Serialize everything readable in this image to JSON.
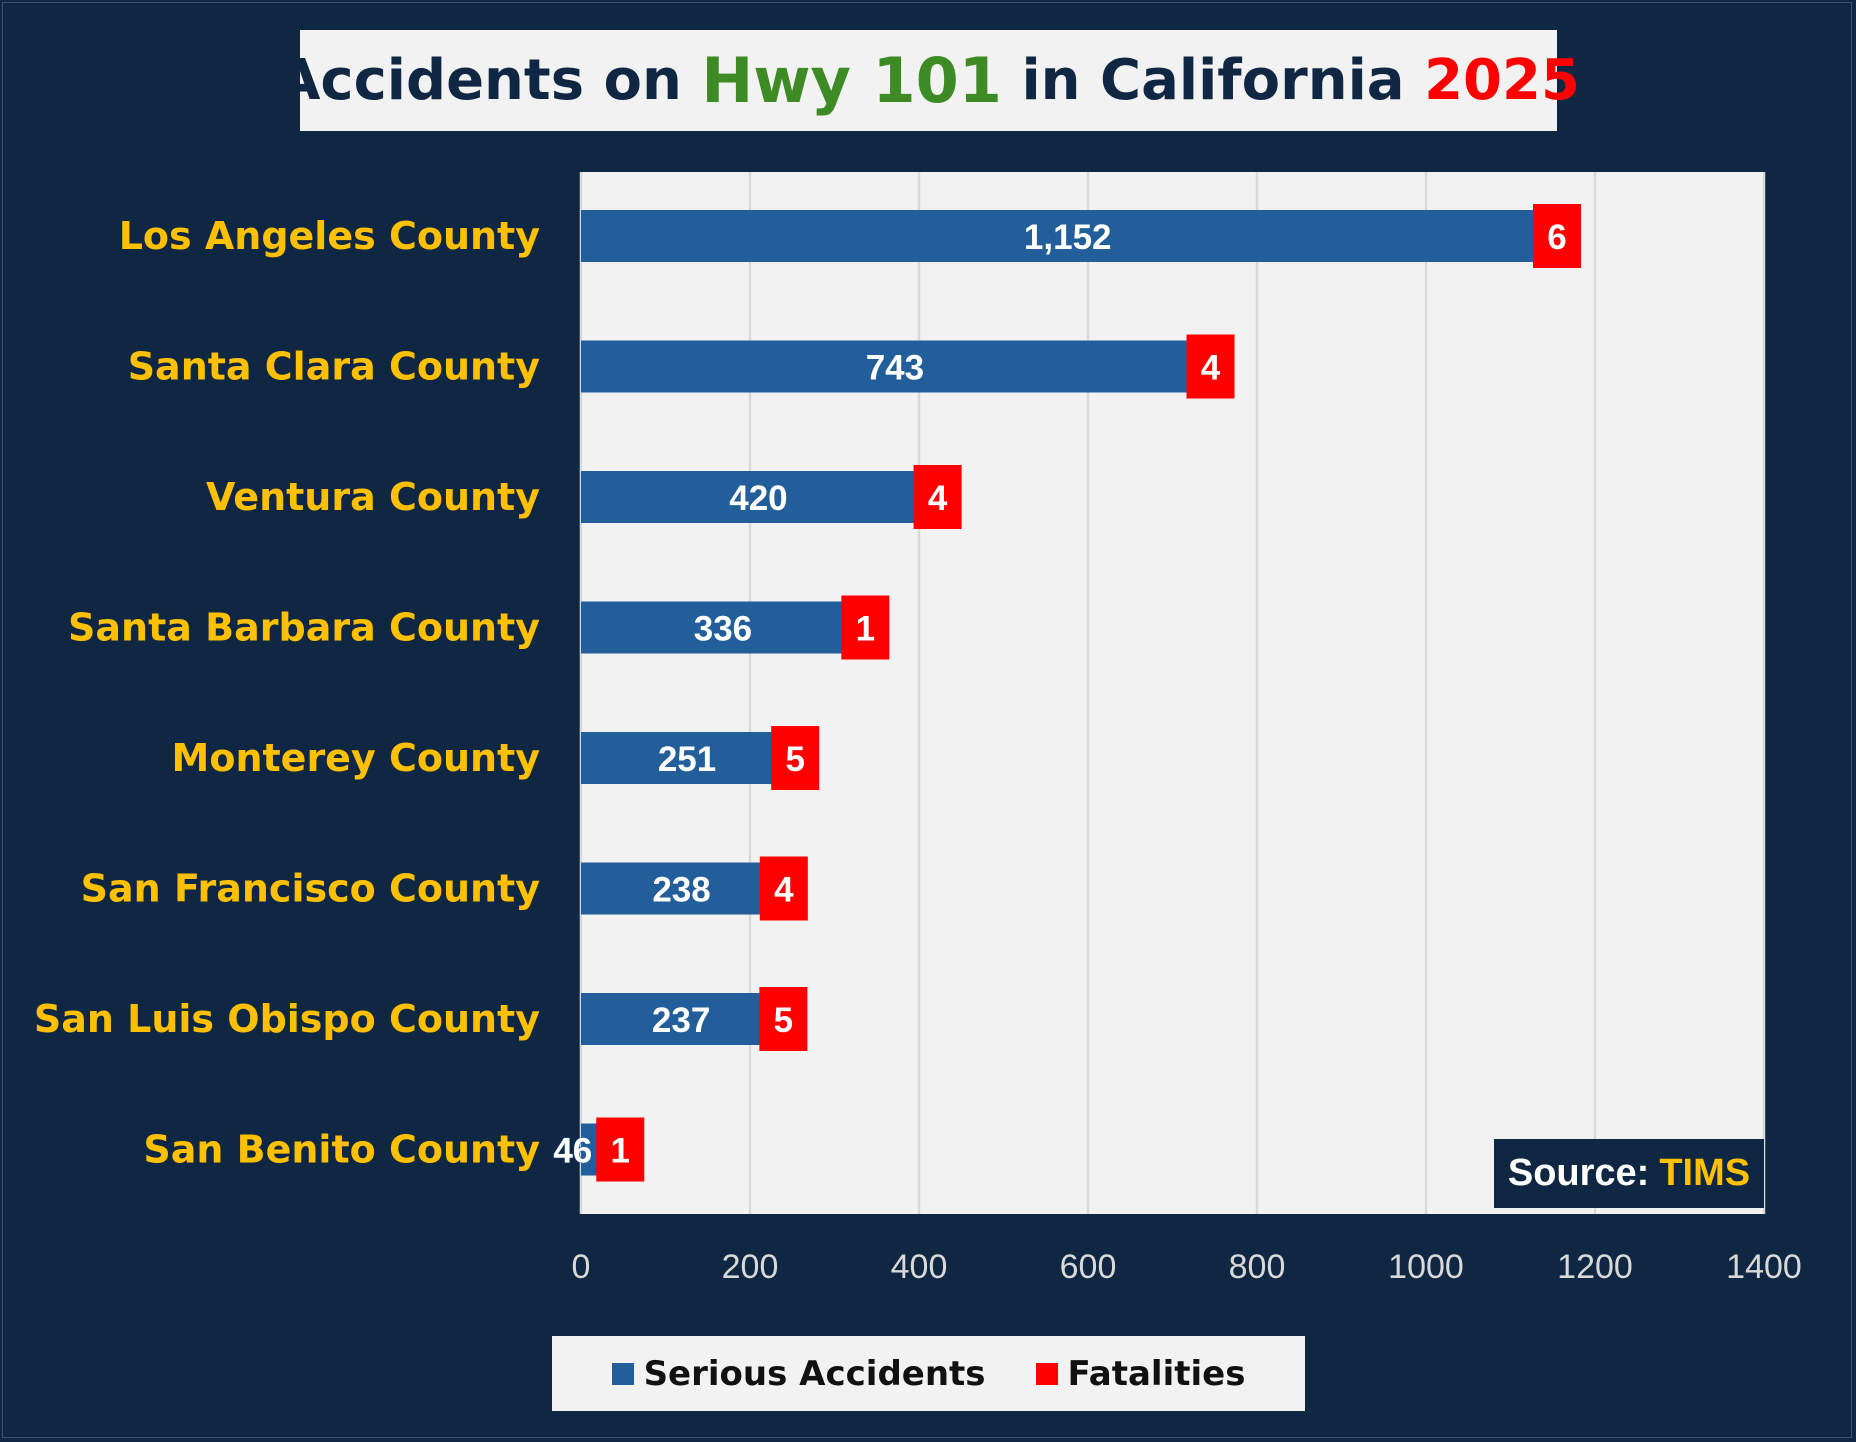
{
  "title": {
    "part1": "Accidents on ",
    "part2": "Hwy 101",
    "part3": " in California ",
    "part4": "2025"
  },
  "source": {
    "label": "Source:",
    "value": "TIMS"
  },
  "colors": {
    "background": "#0f2742",
    "plot_bg": "#f2f2f2",
    "serious": "#225e99",
    "fatalities": "#ff0000",
    "category_label": "#ffc000",
    "hwy": "#3e8a24"
  },
  "chart_data": {
    "type": "bar",
    "orientation": "horizontal",
    "stacked": true,
    "categories": [
      "Los Angeles County",
      "Santa Clara County",
      "Ventura County",
      "Santa Barbara County",
      "Monterey County",
      "San Francisco County",
      "San Luis Obispo County",
      "San Benito County"
    ],
    "series": [
      {
        "name": "Serious Accidents",
        "values": [
          1152,
          743,
          420,
          336,
          251,
          238,
          237,
          46
        ],
        "labels": [
          "1,152",
          "743",
          "420",
          "336",
          "251",
          "238",
          "237",
          "46"
        ]
      },
      {
        "name": "Fatalities",
        "values": [
          6,
          4,
          4,
          1,
          5,
          4,
          5,
          1
        ],
        "labels": [
          "6",
          "4",
          "4",
          "1",
          "5",
          "4",
          "5",
          "1"
        ]
      }
    ],
    "xlim": [
      0,
      1400
    ],
    "xticks": [
      "0",
      "200",
      "400",
      "600",
      "800",
      "1000",
      "1200",
      "1400"
    ],
    "grid": true,
    "legend": "bottom"
  }
}
